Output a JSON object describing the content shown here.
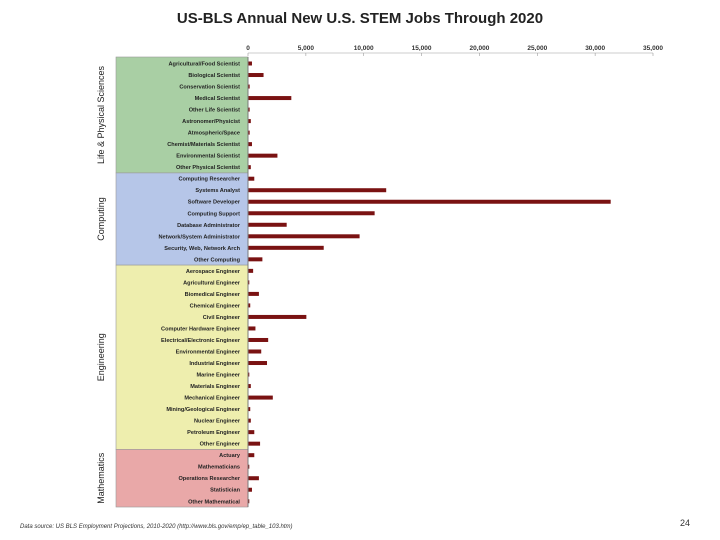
{
  "chart_data": {
    "type": "bar",
    "orientation": "horizontal",
    "title": "US-BLS Annual New U.S. STEM Jobs Through 2020",
    "source": "Data source: US BLS Employment Projections, 2010-2020 (http://www.bls.gov/emp/ep_table_103.htm)",
    "xlim": [
      0,
      35000
    ],
    "xticks": [
      0,
      5000,
      10000,
      15000,
      20000,
      25000,
      30000,
      35000
    ],
    "xtick_labels": [
      "0",
      "5,000",
      "10,000",
      "15,000",
      "20,000",
      "25,000",
      "30,000",
      "35,000"
    ],
    "bar_color": "#7a1212",
    "groups": [
      {
        "name": "Life & Physical Sciences",
        "color": "#a9cfa4",
        "start": 0,
        "end": 9
      },
      {
        "name": "Computing",
        "color": "#b6c6e8",
        "start": 10,
        "end": 17
      },
      {
        "name": "Engineering",
        "color": "#eeeeae",
        "start": 18,
        "end": 33
      },
      {
        "name": "Mathematics",
        "color": "#e9a8a8",
        "start": 34,
        "end": 38
      }
    ],
    "categories": [
      "Agricultural/Food Scientist",
      "Biological Scientist",
      "Conservation Scientist",
      "Medical Scientist",
      "Other Life Scientist",
      "Astronomer/Physicist",
      "Atmospheric/Space",
      "Chemist/Materials Scientist",
      "Environmental Scientist",
      "Other Physical Scientist",
      "Computing Researcher",
      "Systems Analyst",
      "Software Developer",
      "Computing Support",
      "Database Administrator",
      "Network/System Administrator",
      "Security, Web, Network Arch",
      "Other Computing",
      "Aerospace Engineer",
      "Agricultural Engineer",
      "Biomedical Engineer",
      "Chemical Engineer",
      "Civil Engineer",
      "Computer Hardware Engineer",
      "Electrical/Electronic Engineer",
      "Environmental Engineer",
      "Industrial Engineer",
      "Marine Engineer",
      "Materials Engineer",
      "Mechanical Engineer",
      "Mining/Geological Engineer",
      "Nuclear Engineer",
      "Petroleum Engineer",
      "Other Engineer",
      "Actuary",
      "Mathematicians",
      "Operations Researcher",
      "Statistician",
      "Other Mathematical"
    ],
    "values": [
      300,
      1300,
      100,
      3700,
      100,
      200,
      100,
      300,
      2500,
      200,
      500,
      11900,
      31300,
      10900,
      3300,
      9600,
      6500,
      1200,
      400,
      50,
      900,
      150,
      5000,
      600,
      1700,
      1100,
      1600,
      50,
      200,
      2100,
      150,
      200,
      500,
      1000,
      500,
      50,
      900,
      300,
      50
    ]
  },
  "page_number": "24"
}
